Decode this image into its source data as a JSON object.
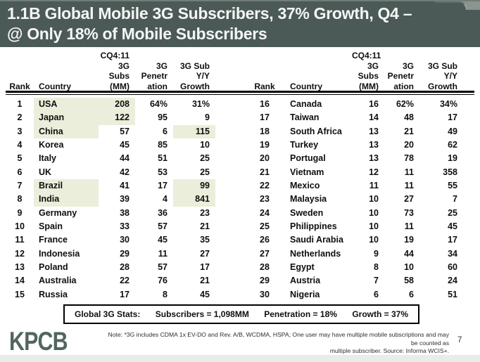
{
  "title": {
    "line1": "1.1B Global Mobile 3G Subscribers, 37% Growth, Q4 –",
    "line2": "@ Only 18% of Mobile Subscribers"
  },
  "table": {
    "headers": {
      "rank": "Rank",
      "country": "Country",
      "subs_lines": [
        "CQ4:11",
        "3G Subs",
        "(MM)"
      ],
      "penetration_lines": [
        "3G",
        "Penetr",
        "ation"
      ],
      "growth_lines": [
        "3G Sub",
        "Y/Y",
        "Growth"
      ]
    },
    "left_rows": [
      {
        "rank": "1",
        "country": "USA",
        "subs": "208",
        "pen": "64%",
        "growth": "31%",
        "hl_country": true,
        "hl_subs": true,
        "hl_growth": false
      },
      {
        "rank": "2",
        "country": "Japan",
        "subs": "122",
        "pen": "95",
        "growth": "9",
        "hl_country": true,
        "hl_subs": true,
        "hl_growth": false
      },
      {
        "rank": "3",
        "country": "China",
        "subs": "57",
        "pen": "6",
        "growth": "115",
        "hl_country": true,
        "hl_subs": false,
        "hl_growth": true
      },
      {
        "rank": "4",
        "country": "Korea",
        "subs": "45",
        "pen": "85",
        "growth": "10",
        "hl_country": false,
        "hl_subs": false,
        "hl_growth": false
      },
      {
        "rank": "5",
        "country": "Italy",
        "subs": "44",
        "pen": "51",
        "growth": "25",
        "hl_country": false,
        "hl_subs": false,
        "hl_growth": false
      },
      {
        "rank": "6",
        "country": "UK",
        "subs": "42",
        "pen": "53",
        "growth": "25",
        "hl_country": false,
        "hl_subs": false,
        "hl_growth": false
      },
      {
        "rank": "7",
        "country": "Brazil",
        "subs": "41",
        "pen": "17",
        "growth": "99",
        "hl_country": true,
        "hl_subs": false,
        "hl_growth": true
      },
      {
        "rank": "8",
        "country": "India",
        "subs": "39",
        "pen": "4",
        "growth": "841",
        "hl_country": true,
        "hl_subs": false,
        "hl_growth": true
      },
      {
        "rank": "9",
        "country": "Germany",
        "subs": "38",
        "pen": "36",
        "growth": "23",
        "hl_country": false,
        "hl_subs": false,
        "hl_growth": false
      },
      {
        "rank": "10",
        "country": "Spain",
        "subs": "33",
        "pen": "57",
        "growth": "21",
        "hl_country": false,
        "hl_subs": false,
        "hl_growth": false
      },
      {
        "rank": "11",
        "country": "France",
        "subs": "30",
        "pen": "45",
        "growth": "35",
        "hl_country": false,
        "hl_subs": false,
        "hl_growth": false
      },
      {
        "rank": "12",
        "country": "Indonesia",
        "subs": "29",
        "pen": "11",
        "growth": "27",
        "hl_country": false,
        "hl_subs": false,
        "hl_growth": false
      },
      {
        "rank": "13",
        "country": "Poland",
        "subs": "28",
        "pen": "57",
        "growth": "17",
        "hl_country": false,
        "hl_subs": false,
        "hl_growth": false
      },
      {
        "rank": "14",
        "country": "Australia",
        "subs": "22",
        "pen": "76",
        "growth": "21",
        "hl_country": false,
        "hl_subs": false,
        "hl_growth": false
      },
      {
        "rank": "15",
        "country": "Russia",
        "subs": "17",
        "pen": "8",
        "growth": "45",
        "hl_country": false,
        "hl_subs": false,
        "hl_growth": false
      }
    ],
    "right_rows": [
      {
        "rank": "16",
        "country": "Canada",
        "subs": "16",
        "pen": "62%",
        "growth": "34%",
        "hl_country": false,
        "hl_subs": false,
        "hl_growth": false
      },
      {
        "rank": "17",
        "country": "Taiwan",
        "subs": "14",
        "pen": "48",
        "growth": "17",
        "hl_country": false,
        "hl_subs": false,
        "hl_growth": false
      },
      {
        "rank": "18",
        "country": "South Africa",
        "subs": "13",
        "pen": "21",
        "growth": "49",
        "hl_country": false,
        "hl_subs": false,
        "hl_growth": false
      },
      {
        "rank": "19",
        "country": "Turkey",
        "subs": "13",
        "pen": "20",
        "growth": "62",
        "hl_country": false,
        "hl_subs": false,
        "hl_growth": false
      },
      {
        "rank": "20",
        "country": "Portugal",
        "subs": "13",
        "pen": "78",
        "growth": "19",
        "hl_country": false,
        "hl_subs": false,
        "hl_growth": false
      },
      {
        "rank": "21",
        "country": "Vietnam",
        "subs": "12",
        "pen": "11",
        "growth": "358",
        "hl_country": false,
        "hl_subs": false,
        "hl_growth": false
      },
      {
        "rank": "22",
        "country": "Mexico",
        "subs": "11",
        "pen": "11",
        "growth": "55",
        "hl_country": false,
        "hl_subs": false,
        "hl_growth": false
      },
      {
        "rank": "23",
        "country": "Malaysia",
        "subs": "10",
        "pen": "27",
        "growth": "7",
        "hl_country": false,
        "hl_subs": false,
        "hl_growth": false
      },
      {
        "rank": "24",
        "country": "Sweden",
        "subs": "10",
        "pen": "73",
        "growth": "25",
        "hl_country": false,
        "hl_subs": false,
        "hl_growth": false
      },
      {
        "rank": "25",
        "country": "Philippines",
        "subs": "10",
        "pen": "11",
        "growth": "45",
        "hl_country": false,
        "hl_subs": false,
        "hl_growth": false
      },
      {
        "rank": "26",
        "country": "Saudi Arabia",
        "subs": "10",
        "pen": "19",
        "growth": "17",
        "hl_country": false,
        "hl_subs": false,
        "hl_growth": false
      },
      {
        "rank": "27",
        "country": "Netherlands",
        "subs": "9",
        "pen": "44",
        "growth": "34",
        "hl_country": false,
        "hl_subs": false,
        "hl_growth": false
      },
      {
        "rank": "28",
        "country": "Egypt",
        "subs": "8",
        "pen": "10",
        "growth": "60",
        "hl_country": false,
        "hl_subs": false,
        "hl_growth": false
      },
      {
        "rank": "29",
        "country": "Austria",
        "subs": "7",
        "pen": "58",
        "growth": "24",
        "hl_country": false,
        "hl_subs": false,
        "hl_growth": false
      },
      {
        "rank": "30",
        "country": "Nigeria",
        "subs": "6",
        "pen": "6",
        "growth": "51",
        "hl_country": false,
        "hl_subs": false,
        "hl_growth": false
      }
    ]
  },
  "stats": {
    "label": "Global 3G Stats:",
    "subscribers": "Subscribers = 1,098MM",
    "penetration": "Penetration = 18%",
    "growth": "Growth = 37%"
  },
  "footer": {
    "logo": "KPCB",
    "note_line1": "Note: *3G includes CDMA 1x EV-DO and Rev. A/B, WCDMA, HSPA; One user may have multiple mobile subscriptions and may be counted as",
    "note_line2": "multiple subscriber.  Source: Informa WCIS+.",
    "page_number": "7"
  },
  "colors": {
    "title_bar_bg": "#4b5a56",
    "highlight": "#ebeeda",
    "logo": "#51665f"
  }
}
